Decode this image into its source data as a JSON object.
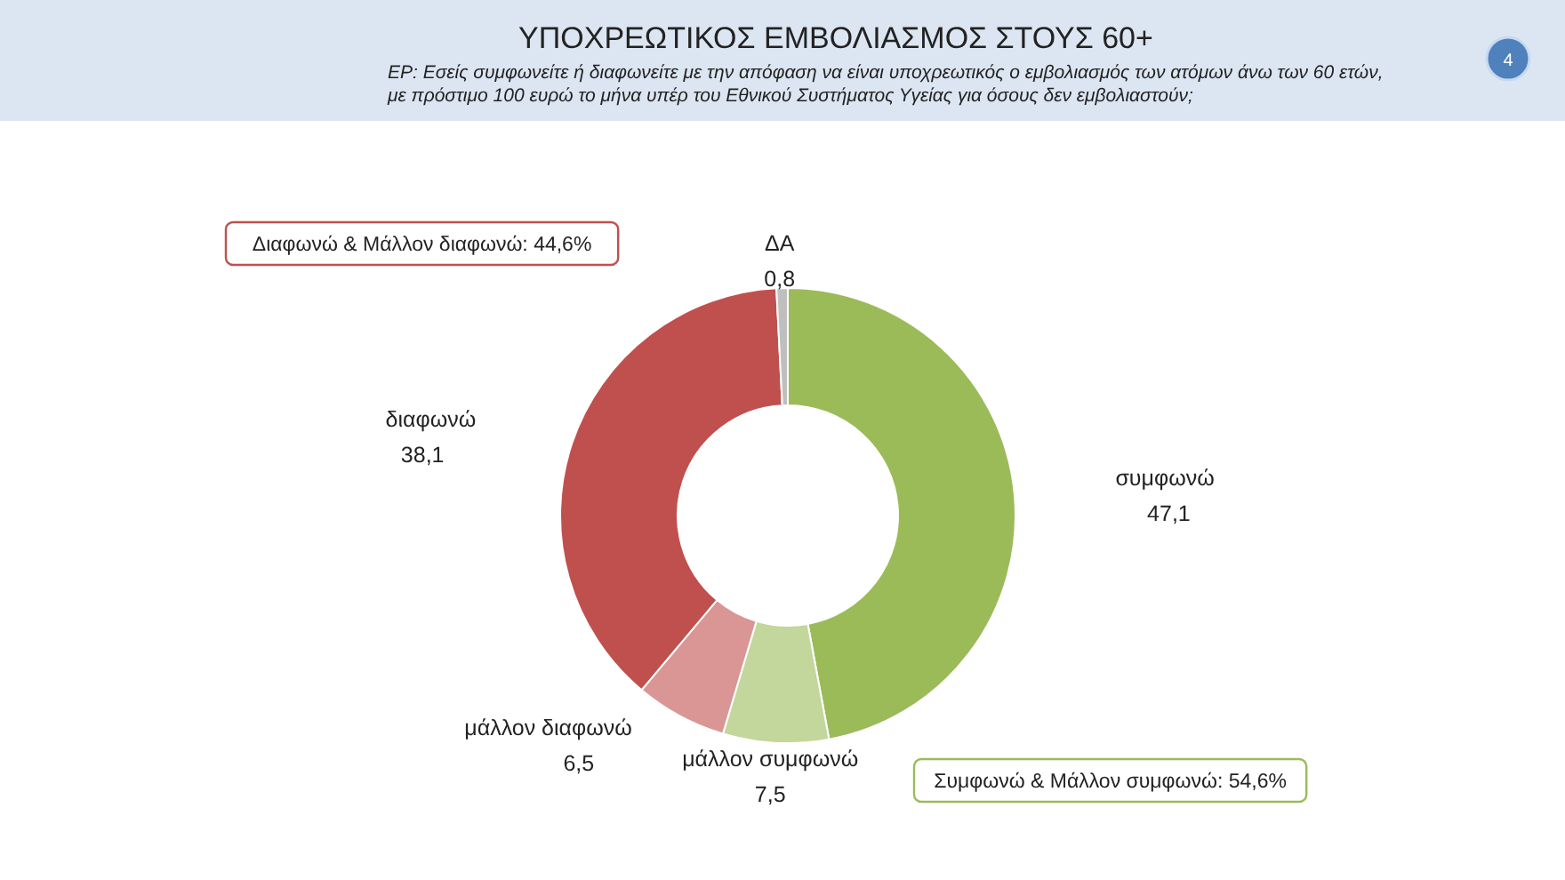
{
  "chart_data": {
    "type": "donut",
    "title": "ΥΠΟΧΡΕΩΤΙΚΟΣ ΕΜΒΟΛΙΑΣΜΟΣ ΣΤΟΥΣ 60+",
    "subtitle": "ΕΡ: Εσείς συμφωνείτε ή διαφωνείτε με την απόφαση να είναι υποχρεωτικός ο εμβολιασμός των ατόμων άνω των 60 ετών,\nμε πρόστιμο 100 ευρώ το μήνα υπέρ του Εθνικού Συστήματος Υγείας για όσους δεν εμβολιαστούν;",
    "categories": [
      "συμφωνώ",
      "μάλλον συμφωνώ",
      "μάλλον διαφωνώ",
      "διαφωνώ",
      "ΔΑ"
    ],
    "values": [
      47.1,
      7.5,
      6.5,
      38.1,
      0.8
    ],
    "value_labels": [
      "47,1",
      "7,5",
      "6,5",
      "38,1",
      "0,8"
    ],
    "colors": [
      "#9bbb59",
      "#c3d69b",
      "#d99694",
      "#c0504d",
      "#bfbfbf"
    ],
    "annotations": [
      "Διαφωνώ & Μάλλον διαφωνώ: 44,6%",
      "Συμφωνώ & Μάλλον συμφωνώ: 54,6%",
      "4"
    ]
  }
}
